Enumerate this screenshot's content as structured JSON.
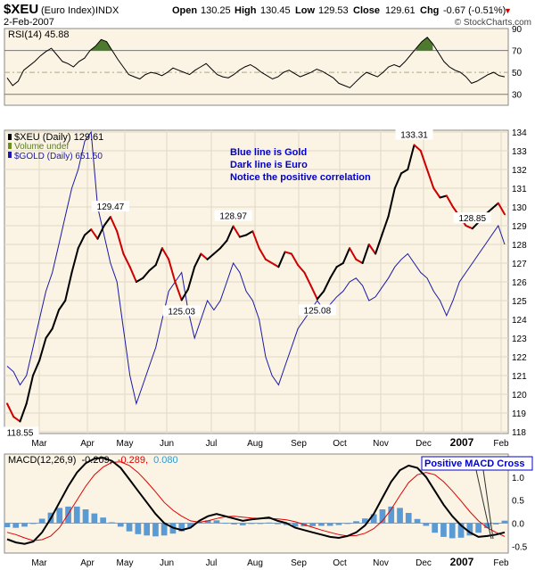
{
  "header": {
    "symbol": "$XEU",
    "name": "(Euro Index)",
    "exchange": "INDX",
    "date": "2-Feb-2007",
    "open_label": "Open",
    "open": "130.25",
    "high_label": "High",
    "high": "130.45",
    "low_label": "Low",
    "low": "129.53",
    "close_label": "Close",
    "close": "129.61",
    "chg_label": "Chg",
    "chg": "-0.67 (-0.51%)",
    "chg_arrow": "▼",
    "brand": "© StockCharts.com"
  },
  "colors": {
    "panel_bg": "#fbf3e3",
    "euro_line": "#000000",
    "euro_down": "#cc0000",
    "gold_line": "#1a1aa6",
    "macd_line": "#000000",
    "signal_line": "#e00000",
    "hist": "#5b9bd5",
    "rsi_fill": "#4d7a2c",
    "note_text": "#0000cc"
  },
  "chart_data": [
    {
      "type": "line",
      "title": "RSI(14) 45.88",
      "series": [
        {
          "name": "RSI(14) 45.88",
          "values": [
            45,
            38,
            42,
            52,
            56,
            60,
            65,
            69,
            72,
            66,
            60,
            58,
            55,
            60,
            63,
            70,
            74,
            80,
            78,
            70,
            62,
            55,
            48,
            46,
            44,
            48,
            50,
            49,
            47,
            50,
            54,
            52,
            50,
            48,
            52,
            55,
            58,
            53,
            48,
            46,
            45,
            48,
            52,
            55,
            57,
            54,
            50,
            47,
            44,
            46,
            50,
            52,
            49,
            46,
            48,
            50,
            53,
            51,
            48,
            45,
            40,
            38,
            36,
            41,
            46,
            50,
            48,
            46,
            50,
            55,
            57,
            55,
            60,
            66,
            72,
            78,
            82,
            76,
            68,
            60,
            55,
            52,
            50,
            46,
            40,
            42,
            45,
            48,
            50,
            47,
            46
          ]
        }
      ],
      "ylim": [
        20,
        90
      ],
      "y_ticks": [
        "90",
        "70",
        "50",
        "30"
      ],
      "ref_lines": [
        70,
        50,
        30
      ]
    },
    {
      "type": "line",
      "series": [
        {
          "name": "$XEU (Daily) 129.61",
          "values": [
            119.5,
            118.8,
            118.55,
            119.5,
            121.0,
            121.8,
            123.0,
            123.5,
            124.5,
            125.0,
            126.5,
            127.8,
            128.5,
            128.8,
            128.3,
            129.0,
            129.47,
            128.7,
            127.5,
            126.8,
            126.0,
            126.2,
            126.6,
            126.9,
            127.8,
            127.2,
            126.0,
            125.03,
            125.6,
            126.8,
            127.5,
            127.2,
            127.5,
            127.8,
            128.2,
            128.97,
            128.4,
            128.5,
            128.7,
            127.8,
            127.2,
            127.0,
            126.8,
            127.6,
            127.5,
            126.9,
            126.5,
            125.8,
            125.08,
            125.5,
            126.2,
            126.8,
            127.0,
            127.8,
            127.2,
            127.0,
            128.0,
            127.5,
            128.5,
            129.5,
            131.0,
            131.8,
            132.0,
            133.31,
            133.0,
            132.0,
            131.0,
            130.5,
            130.6,
            130.0,
            129.5,
            129.0,
            128.85,
            129.2,
            129.6,
            129.9,
            130.2,
            129.61
          ],
          "labels": [
            {
              "value": "118.55"
            },
            {
              "value": "129.47"
            },
            {
              "value": "125.03"
            },
            {
              "value": "128.97"
            },
            {
              "value": "125.08"
            },
            {
              "value": "133.31"
            },
            {
              "value": "128.85"
            }
          ]
        },
        {
          "name": "$GOLD (Daily) 651.50",
          "values": [
            121.5,
            121.2,
            120.5,
            121.0,
            122.5,
            124.0,
            125.5,
            126.5,
            128.0,
            129.5,
            131.0,
            132.0,
            133.5,
            134.0,
            130.0,
            128.5,
            127.0,
            126.0,
            123.5,
            121.0,
            119.5,
            120.5,
            121.5,
            122.5,
            124.0,
            125.5,
            126.0,
            126.5,
            124.5,
            123.0,
            124.0,
            125.0,
            124.5,
            125.0,
            126.0,
            127.0,
            126.5,
            125.5,
            125.0,
            124.0,
            122.0,
            121.0,
            120.5,
            121.5,
            122.5,
            123.5,
            124.0,
            124.5,
            125.0,
            124.5,
            124.8,
            125.2,
            125.5,
            126.0,
            126.2,
            125.8,
            125.0,
            125.2,
            125.7,
            126.2,
            126.8,
            127.2,
            127.5,
            127.0,
            126.5,
            126.2,
            125.5,
            125.0,
            124.2,
            125.0,
            126.0,
            126.5,
            127.0,
            127.5,
            128.0,
            128.5,
            129.0,
            128.0
          ]
        }
      ],
      "legend": [
        "$XEU (Daily) 129.61",
        "Volume undef",
        "$GOLD (Daily) 651.50"
      ],
      "annotations": [
        "Blue line is Gold",
        "Dark line is Euro",
        "Notice the positive correlation"
      ],
      "ylim": [
        118,
        134
      ],
      "y_ticks": [
        "134",
        "133",
        "132",
        "131",
        "130",
        "129",
        "128",
        "127",
        "126",
        "125",
        "124",
        "123",
        "122",
        "121",
        "120",
        "119",
        "118"
      ],
      "x_ticks": [
        "Mar",
        "Apr",
        "May",
        "Jun",
        "Jul",
        "Aug",
        "Sep",
        "Oct",
        "Nov",
        "Dec",
        "2007",
        "Feb"
      ]
    },
    {
      "type": "line",
      "title": "MACD(12,26,9) -0.209, -0.289, 0.080",
      "title_parts": {
        "label": "MACD(12,26,9)",
        "macd": "-0.209,",
        "signal": "-0.289,",
        "hist": "0.080"
      },
      "series": [
        {
          "name": "MACD",
          "values": [
            -0.35,
            -0.42,
            -0.45,
            -0.4,
            -0.2,
            0.1,
            0.45,
            0.8,
            1.1,
            1.3,
            1.4,
            1.42,
            1.35,
            1.2,
            0.95,
            0.7,
            0.45,
            0.2,
            0.0,
            -0.1,
            -0.15,
            -0.1,
            0.05,
            0.15,
            0.2,
            0.15,
            0.1,
            0.05,
            0.08,
            0.1,
            0.12,
            0.05,
            0.0,
            -0.1,
            -0.15,
            -0.2,
            -0.25,
            -0.3,
            -0.32,
            -0.28,
            -0.2,
            -0.05,
            0.2,
            0.55,
            0.9,
            1.15,
            1.25,
            1.2,
            1.0,
            0.7,
            0.4,
            0.15,
            -0.05,
            -0.2,
            -0.3,
            -0.28,
            -0.25,
            -0.2
          ]
        },
        {
          "name": "Signal",
          "values": [
            -0.2,
            -0.25,
            -0.32,
            -0.38,
            -0.36,
            -0.28,
            -0.1,
            0.2,
            0.5,
            0.8,
            1.05,
            1.22,
            1.32,
            1.33,
            1.25,
            1.1,
            0.9,
            0.68,
            0.45,
            0.28,
            0.15,
            0.05,
            0.02,
            0.05,
            0.1,
            0.14,
            0.15,
            0.13,
            0.11,
            0.1,
            0.1,
            0.09,
            0.07,
            0.03,
            -0.03,
            -0.09,
            -0.15,
            -0.2,
            -0.25,
            -0.28,
            -0.27,
            -0.22,
            -0.12,
            0.05,
            0.3,
            0.6,
            0.88,
            1.05,
            1.1,
            1.05,
            0.9,
            0.7,
            0.48,
            0.25,
            0.05,
            -0.1,
            -0.2,
            -0.29
          ]
        }
      ],
      "annotation": "Positive MACD Cross",
      "ylim": [
        -0.65,
        1.5
      ],
      "y_ticks": [
        "1.0",
        "0.5",
        "0.0",
        "-0.5"
      ],
      "x_ticks": [
        "Mar",
        "Apr",
        "May",
        "Jun",
        "Jul",
        "Aug",
        "Sep",
        "Oct",
        "Nov",
        "Dec",
        "2007",
        "Feb"
      ]
    }
  ]
}
